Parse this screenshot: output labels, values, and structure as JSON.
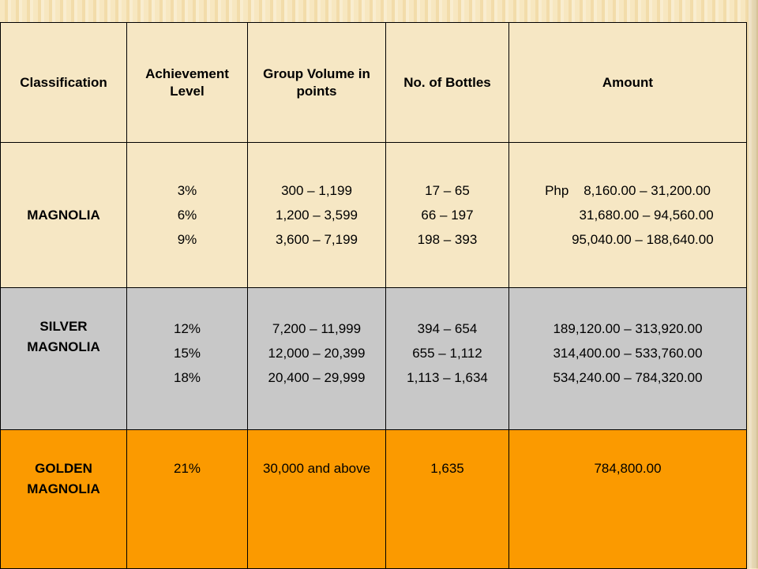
{
  "headers": [
    "Classification",
    "Achievement Level",
    "Group Volume in points",
    "No. of Bottles",
    "Amount"
  ],
  "rows": [
    {
      "classification": "MAGNOLIA",
      "levels": [
        "3%",
        "6%",
        "9%"
      ],
      "volumes": [
        "300 – 1,199",
        "1,200 – 3,599",
        "3,600 – 7,199"
      ],
      "bottles": [
        "17 – 65",
        "66 – 197",
        "198 – 393"
      ],
      "amounts": [
        "Php    8,160.00 – 31,200.00",
        "          31,680.00 – 94,560.00",
        "        95,040.00 – 188,640.00"
      ]
    },
    {
      "classification": "SILVER MAGNOLIA",
      "levels": [
        "12%",
        "15%",
        "18%"
      ],
      "volumes": [
        "7,200 – 11,999",
        "12,000 – 20,399",
        "20,400 – 29,999"
      ],
      "bottles": [
        "394 – 654",
        "655 – 1,112",
        "1,113 – 1,634"
      ],
      "amounts": [
        "189,120.00 – 313,920.00",
        "314,400.00 – 533,760.00",
        "534,240.00 – 784,320.00"
      ]
    },
    {
      "classification": "GOLDEN MAGNOLIA",
      "levels": [
        "21%"
      ],
      "volumes": [
        "30,000 and above"
      ],
      "bottles": [
        "1,635"
      ],
      "amounts": [
        "784,800.00"
      ]
    }
  ],
  "colors": {
    "header_bg": "#f6e7c4",
    "silver_bg": "#c8c8c8",
    "golden_bg": "#fb9a00"
  }
}
